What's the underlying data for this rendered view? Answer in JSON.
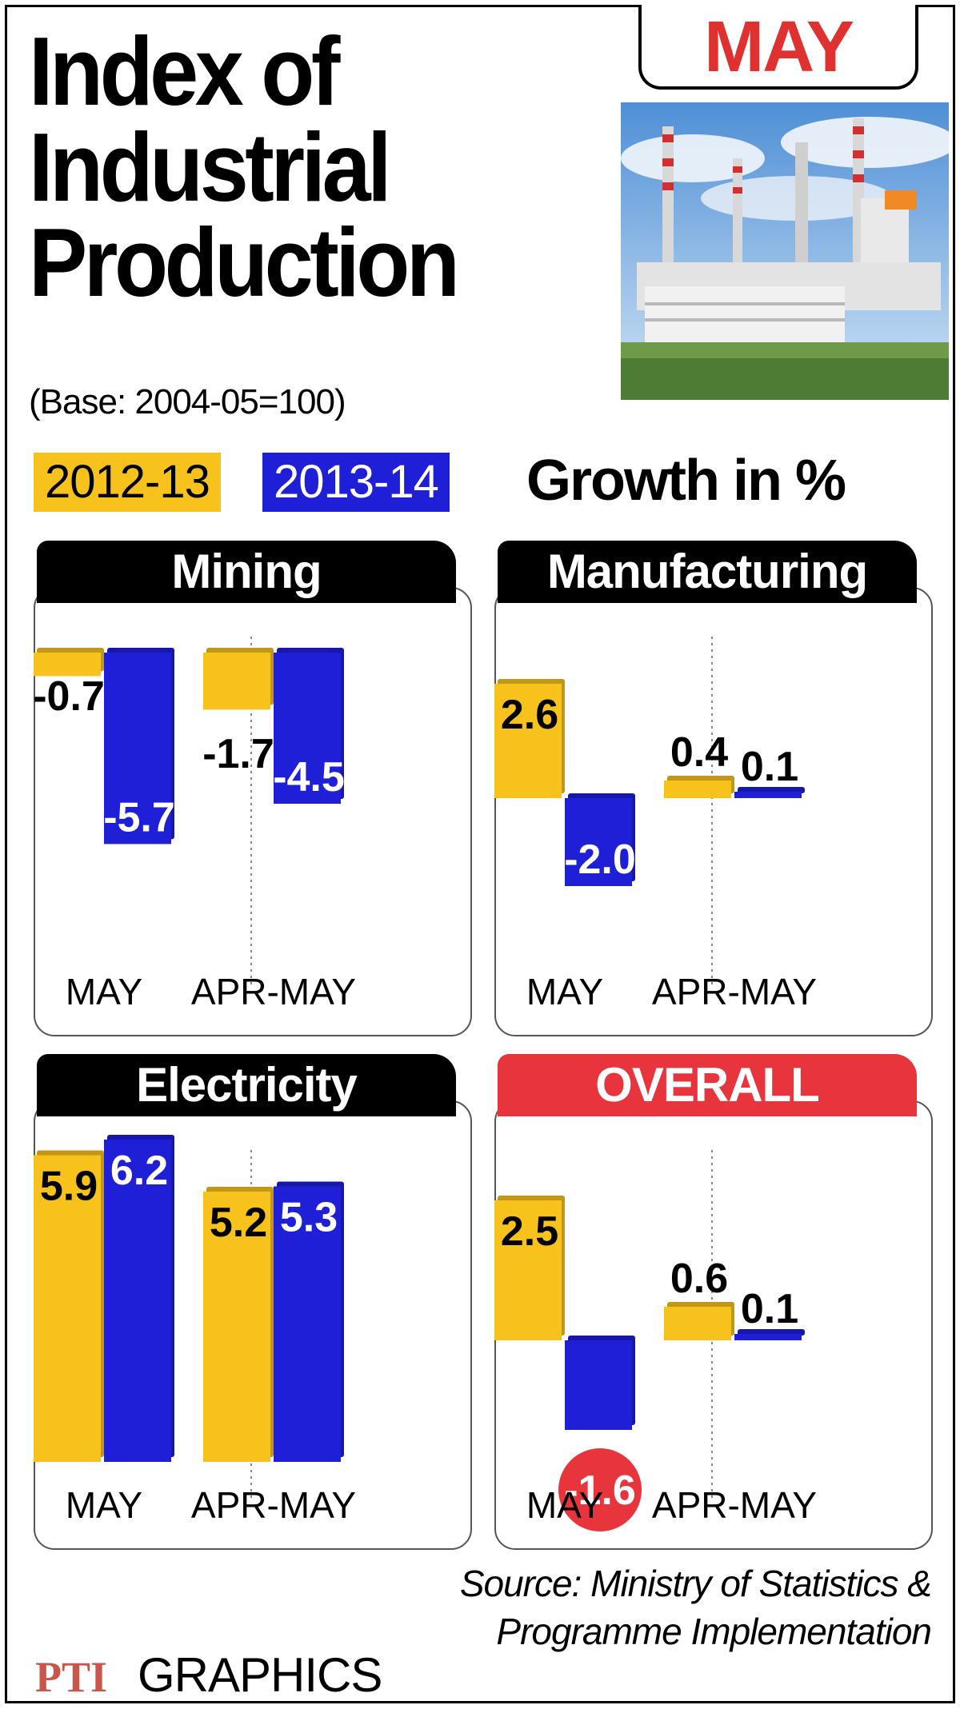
{
  "header": {
    "title_lines": [
      "Index of",
      "Industrial",
      "Production"
    ],
    "base_note": "(Base: 2004-05=100)",
    "month_tab": "MAY",
    "growth_label": "Growth in %"
  },
  "legend": {
    "series_a": "2012-13",
    "series_b": "2013-14"
  },
  "colors": {
    "series_a": "#f7c21b",
    "series_b": "#1f1fd8",
    "overall_accent": "#e8343d",
    "panel_header": "#000000"
  },
  "footer": {
    "source_line1": "Source: Ministry of Statistics &",
    "source_line2": "Programme Implementation",
    "credit_logo_text": "PTI",
    "credit_label": "GRAPHICS"
  },
  "chart_data": [
    {
      "type": "bar",
      "title": "Mining",
      "categories": [
        "MAY",
        "APR-MAY"
      ],
      "series": [
        {
          "name": "2012-13",
          "values": [
            -0.7,
            -1.7
          ]
        },
        {
          "name": "2013-14",
          "values": [
            -5.7,
            -4.5
          ]
        }
      ]
    },
    {
      "type": "bar",
      "title": "Manufacturing",
      "categories": [
        "MAY",
        "APR-MAY"
      ],
      "series": [
        {
          "name": "2012-13",
          "values": [
            2.6,
            0.4
          ]
        },
        {
          "name": "2013-14",
          "values": [
            -2.0,
            0.1
          ]
        }
      ]
    },
    {
      "type": "bar",
      "title": "Electricity",
      "categories": [
        "MAY",
        "APR-MAY"
      ],
      "series": [
        {
          "name": "2012-13",
          "values": [
            5.9,
            5.2
          ]
        },
        {
          "name": "2013-14",
          "values": [
            6.2,
            5.3
          ]
        }
      ]
    },
    {
      "type": "bar",
      "title": "OVERALL",
      "categories": [
        "MAY",
        "APR-MAY"
      ],
      "series": [
        {
          "name": "2012-13",
          "values": [
            2.5,
            0.6
          ]
        },
        {
          "name": "2013-14",
          "values": [
            -1.6,
            0.1
          ]
        }
      ]
    }
  ]
}
